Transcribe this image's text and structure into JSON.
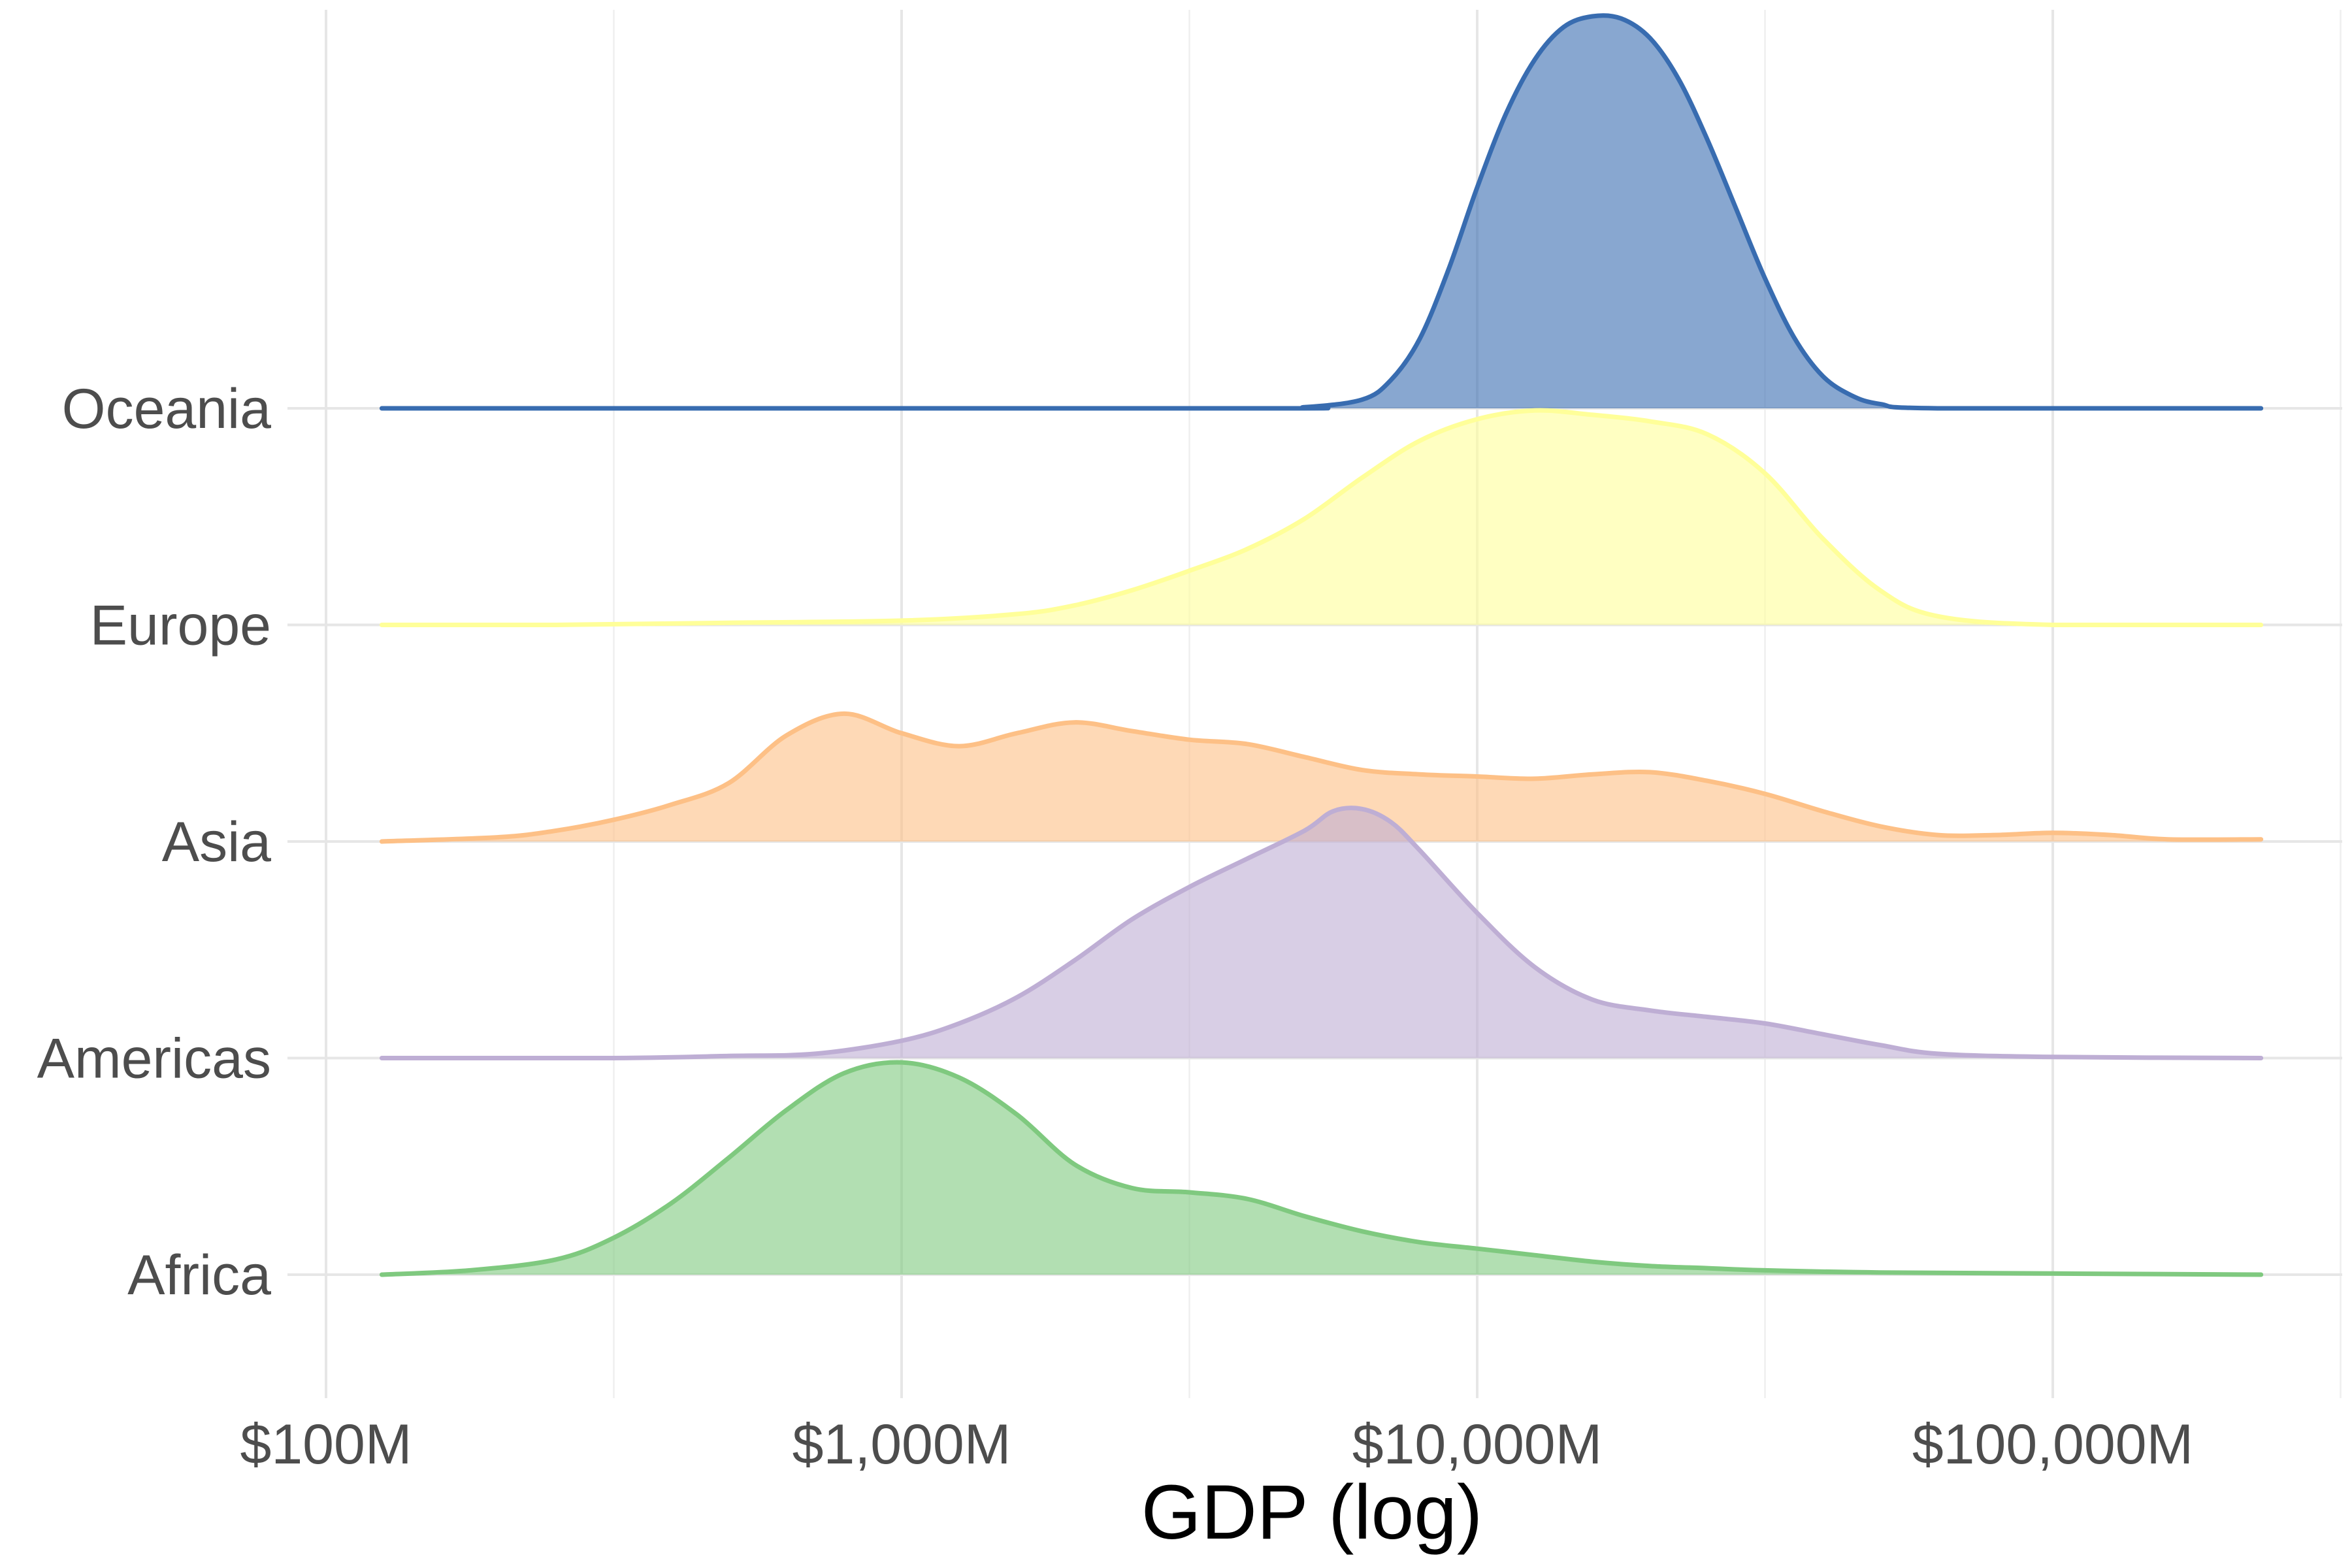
{
  "chart_data": {
    "type": "ridgeline",
    "xlabel": "GDP (log)",
    "ylabel": "",
    "x_scale": "log10",
    "x_unit": "GDP in millions USD",
    "xlim": [
      125,
      230000
    ],
    "x_ticks": [
      {
        "value": 100,
        "label": "$100M"
      },
      {
        "value": 1000,
        "label": "$1,000M"
      },
      {
        "value": 10000,
        "label": "$10,000M"
      },
      {
        "value": 100000,
        "label": "$100,000M"
      }
    ],
    "grid": true,
    "legend": "none",
    "categories": [
      "Africa",
      "Americas",
      "Asia",
      "Europe",
      "Oceania"
    ],
    "series": [
      {
        "name": "Africa",
        "color": "#7fc97f",
        "points": [
          [
            125,
            0.0
          ],
          [
            178,
            0.02
          ],
          [
            251,
            0.07
          ],
          [
            316,
            0.17
          ],
          [
            398,
            0.33
          ],
          [
            501,
            0.54
          ],
          [
            631,
            0.76
          ],
          [
            794,
            0.93
          ],
          [
            1000,
            0.98
          ],
          [
            1259,
            0.91
          ],
          [
            1585,
            0.74
          ],
          [
            1995,
            0.51
          ],
          [
            2512,
            0.4
          ],
          [
            3162,
            0.38
          ],
          [
            3981,
            0.35
          ],
          [
            5012,
            0.27
          ],
          [
            6310,
            0.2
          ],
          [
            7943,
            0.15
          ],
          [
            10000,
            0.12
          ],
          [
            12589,
            0.09
          ],
          [
            15849,
            0.06
          ],
          [
            19953,
            0.04
          ],
          [
            25119,
            0.03
          ],
          [
            31623,
            0.02
          ],
          [
            50119,
            0.01
          ],
          [
            100000,
            0.005
          ],
          [
            230000,
            0.0
          ]
        ]
      },
      {
        "name": "Americas",
        "color": "#beaed4",
        "points": [
          [
            125,
            0.0
          ],
          [
            316,
            0.0
          ],
          [
            501,
            0.01
          ],
          [
            708,
            0.02
          ],
          [
            1000,
            0.08
          ],
          [
            1259,
            0.16
          ],
          [
            1585,
            0.28
          ],
          [
            1995,
            0.45
          ],
          [
            2512,
            0.64
          ],
          [
            3162,
            0.79
          ],
          [
            3981,
            0.92
          ],
          [
            5012,
            1.05
          ],
          [
            5623,
            1.14
          ],
          [
            6310,
            1.15
          ],
          [
            7079,
            1.09
          ],
          [
            7943,
            0.96
          ],
          [
            10000,
            0.67
          ],
          [
            12589,
            0.42
          ],
          [
            15849,
            0.27
          ],
          [
            19953,
            0.22
          ],
          [
            25119,
            0.19
          ],
          [
            31623,
            0.16
          ],
          [
            39811,
            0.11
          ],
          [
            50119,
            0.06
          ],
          [
            63096,
            0.02
          ],
          [
            100000,
            0.005
          ],
          [
            230000,
            0.0
          ]
        ]
      },
      {
        "name": "Asia",
        "color": "#fdc086",
        "points": [
          [
            125,
            0.0
          ],
          [
            200,
            0.02
          ],
          [
            251,
            0.05
          ],
          [
            316,
            0.1
          ],
          [
            398,
            0.17
          ],
          [
            501,
            0.27
          ],
          [
            631,
            0.49
          ],
          [
            794,
            0.59
          ],
          [
            1000,
            0.5
          ],
          [
            1259,
            0.44
          ],
          [
            1585,
            0.5
          ],
          [
            1995,
            0.55
          ],
          [
            2512,
            0.51
          ],
          [
            3162,
            0.47
          ],
          [
            3981,
            0.45
          ],
          [
            5012,
            0.39
          ],
          [
            6310,
            0.33
          ],
          [
            7943,
            0.31
          ],
          [
            10000,
            0.3
          ],
          [
            12589,
            0.29
          ],
          [
            15849,
            0.31
          ],
          [
            19953,
            0.32
          ],
          [
            25119,
            0.28
          ],
          [
            31623,
            0.22
          ],
          [
            39811,
            0.14
          ],
          [
            50119,
            0.07
          ],
          [
            63096,
            0.03
          ],
          [
            79433,
            0.03
          ],
          [
            100000,
            0.04
          ],
          [
            125893,
            0.03
          ],
          [
            158489,
            0.01
          ],
          [
            230000,
            0.01
          ]
        ]
      },
      {
        "name": "Europe",
        "color": "#ffff99",
        "points": [
          [
            125,
            0.0
          ],
          [
            251,
            0.0
          ],
          [
            501,
            0.01
          ],
          [
            1000,
            0.02
          ],
          [
            1585,
            0.05
          ],
          [
            1995,
            0.09
          ],
          [
            2512,
            0.16
          ],
          [
            3162,
            0.25
          ],
          [
            3981,
            0.35
          ],
          [
            5012,
            0.49
          ],
          [
            6310,
            0.68
          ],
          [
            7943,
            0.85
          ],
          [
            10000,
            0.95
          ],
          [
            12589,
            0.99
          ],
          [
            15849,
            0.97
          ],
          [
            19953,
            0.94
          ],
          [
            25119,
            0.88
          ],
          [
            31623,
            0.7
          ],
          [
            39811,
            0.4
          ],
          [
            50119,
            0.16
          ],
          [
            63096,
            0.04
          ],
          [
            100000,
            0.0
          ],
          [
            230000,
            0.0
          ]
        ]
      },
      {
        "name": "Oceania",
        "color": "#386cb0",
        "points": [
          [
            125,
            0.0
          ],
          [
            3981,
            0.0
          ],
          [
            5012,
            0.005
          ],
          [
            6310,
            0.04
          ],
          [
            7079,
            0.13
          ],
          [
            7943,
            0.32
          ],
          [
            8913,
            0.64
          ],
          [
            10000,
            1.02
          ],
          [
            11220,
            1.36
          ],
          [
            12589,
            1.61
          ],
          [
            14125,
            1.76
          ],
          [
            15849,
            1.81
          ],
          [
            17783,
            1.8
          ],
          [
            19953,
            1.71
          ],
          [
            22387,
            1.52
          ],
          [
            25119,
            1.24
          ],
          [
            28184,
            0.92
          ],
          [
            31623,
            0.6
          ],
          [
            35481,
            0.33
          ],
          [
            39811,
            0.15
          ],
          [
            44668,
            0.06
          ],
          [
            50119,
            0.02
          ],
          [
            63096,
            0.0
          ],
          [
            230000,
            0.0
          ]
        ]
      }
    ]
  }
}
